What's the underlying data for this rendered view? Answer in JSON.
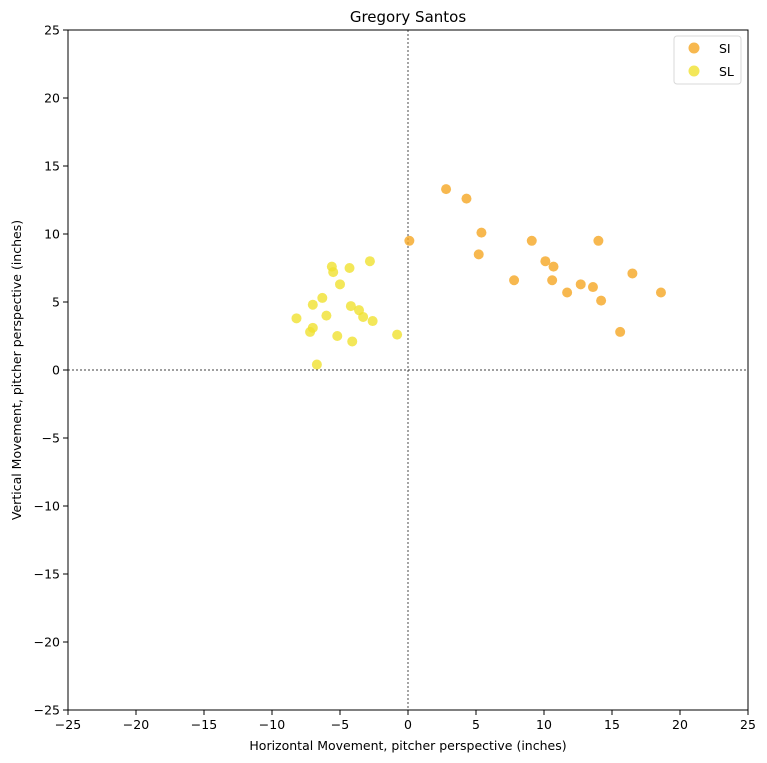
{
  "chart_data": {
    "type": "scatter",
    "title": "Gregory Santos",
    "xlabel": "Horizontal Movement, pitcher perspective (inches)",
    "ylabel": "Vertical Movement, pitcher perspective (inches)",
    "xlim": [
      -25,
      25
    ],
    "ylim": [
      -25,
      25
    ],
    "xticks": [
      -25,
      -20,
      -15,
      -10,
      -5,
      0,
      5,
      10,
      15,
      20,
      25
    ],
    "yticks": [
      -25,
      -20,
      -15,
      -10,
      -5,
      0,
      5,
      10,
      15,
      20,
      25
    ],
    "grid": false,
    "zero_lines": true,
    "legend_position": "top-right",
    "series": [
      {
        "name": "SI",
        "color": "#f5a623",
        "points": [
          [
            0.1,
            9.5
          ],
          [
            2.8,
            13.3
          ],
          [
            4.3,
            12.6
          ],
          [
            5.4,
            10.1
          ],
          [
            5.2,
            8.5
          ],
          [
            7.8,
            6.6
          ],
          [
            9.1,
            9.5
          ],
          [
            10.1,
            8.0
          ],
          [
            10.7,
            7.6
          ],
          [
            10.6,
            6.6
          ],
          [
            11.7,
            5.7
          ],
          [
            12.7,
            6.3
          ],
          [
            13.6,
            6.1
          ],
          [
            14.0,
            9.5
          ],
          [
            14.2,
            5.1
          ],
          [
            15.6,
            2.8
          ],
          [
            16.5,
            7.1
          ],
          [
            18.6,
            5.7
          ]
        ]
      },
      {
        "name": "SL",
        "color": "#f0e130",
        "points": [
          [
            -8.2,
            3.8
          ],
          [
            -7.2,
            2.8
          ],
          [
            -7.0,
            3.1
          ],
          [
            -7.0,
            4.8
          ],
          [
            -6.7,
            0.4
          ],
          [
            -6.3,
            5.3
          ],
          [
            -6.0,
            4.0
          ],
          [
            -5.6,
            7.6
          ],
          [
            -5.5,
            7.2
          ],
          [
            -5.2,
            2.5
          ],
          [
            -5.0,
            6.3
          ],
          [
            -4.3,
            7.5
          ],
          [
            -4.2,
            4.7
          ],
          [
            -4.1,
            2.1
          ],
          [
            -3.6,
            4.4
          ],
          [
            -3.3,
            3.9
          ],
          [
            -2.8,
            8.0
          ],
          [
            -2.6,
            3.6
          ],
          [
            -0.8,
            2.6
          ]
        ]
      }
    ]
  }
}
